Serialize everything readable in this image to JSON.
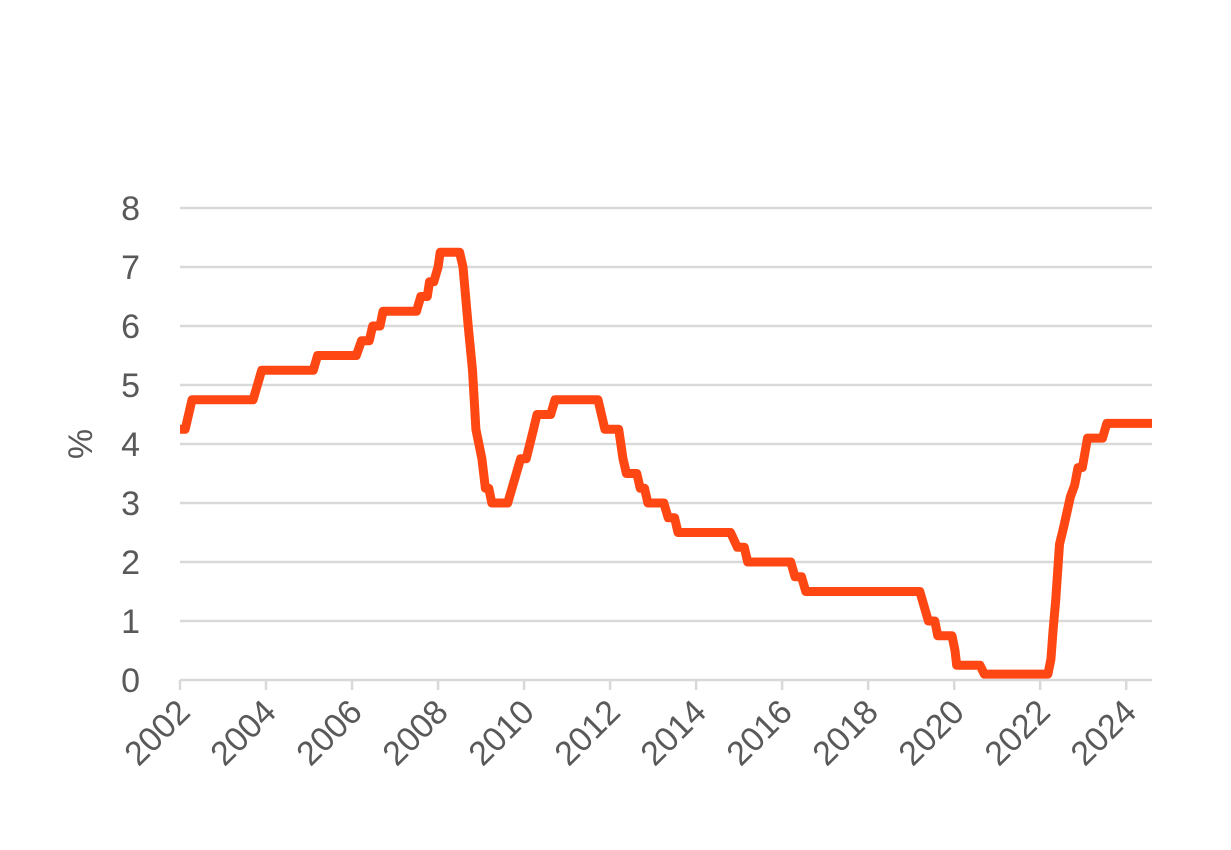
{
  "chart_data": {
    "type": "line",
    "title": "",
    "xlabel": "",
    "ylabel": "%",
    "xlim": [
      2002,
      2024.6
    ],
    "ylim": [
      0,
      8
    ],
    "grid": true,
    "x_ticks": [
      "2002",
      "2004",
      "2006",
      "2008",
      "2010",
      "2012",
      "2014",
      "2016",
      "2018",
      "2020",
      "2022",
      "2024"
    ],
    "y_ticks": [
      "0",
      "1",
      "2",
      "3",
      "4",
      "5",
      "6",
      "7",
      "8"
    ],
    "colors": {
      "line": "#ff4713",
      "grid": "#d9d9d9",
      "text": "#595959"
    },
    "series": [
      {
        "name": "",
        "points": [
          [
            2002.0,
            4.25
          ],
          [
            2002.12,
            4.25
          ],
          [
            2002.28,
            4.75
          ],
          [
            2003.7,
            4.75
          ],
          [
            2003.9,
            5.25
          ],
          [
            2005.1,
            5.25
          ],
          [
            2005.2,
            5.5
          ],
          [
            2006.1,
            5.5
          ],
          [
            2006.22,
            5.75
          ],
          [
            2006.4,
            5.75
          ],
          [
            2006.48,
            6.0
          ],
          [
            2006.65,
            6.0
          ],
          [
            2006.72,
            6.25
          ],
          [
            2007.5,
            6.25
          ],
          [
            2007.6,
            6.5
          ],
          [
            2007.75,
            6.5
          ],
          [
            2007.8,
            6.75
          ],
          [
            2007.9,
            6.75
          ],
          [
            2008.0,
            7.0
          ],
          [
            2008.05,
            7.25
          ],
          [
            2008.5,
            7.25
          ],
          [
            2008.58,
            7.0
          ],
          [
            2008.7,
            6.0
          ],
          [
            2008.8,
            5.25
          ],
          [
            2008.88,
            4.25
          ],
          [
            2009.02,
            3.75
          ],
          [
            2009.1,
            3.25
          ],
          [
            2009.18,
            3.25
          ],
          [
            2009.25,
            3.0
          ],
          [
            2009.62,
            3.0
          ],
          [
            2009.92,
            3.75
          ],
          [
            2010.05,
            3.75
          ],
          [
            2010.22,
            4.25
          ],
          [
            2010.3,
            4.5
          ],
          [
            2010.62,
            4.5
          ],
          [
            2010.72,
            4.75
          ],
          [
            2011.72,
            4.75
          ],
          [
            2011.88,
            4.25
          ],
          [
            2012.2,
            4.25
          ],
          [
            2012.3,
            3.75
          ],
          [
            2012.38,
            3.5
          ],
          [
            2012.62,
            3.5
          ],
          [
            2012.7,
            3.25
          ],
          [
            2012.8,
            3.25
          ],
          [
            2012.88,
            3.0
          ],
          [
            2013.25,
            3.0
          ],
          [
            2013.35,
            2.75
          ],
          [
            2013.5,
            2.75
          ],
          [
            2013.58,
            2.5
          ],
          [
            2014.8,
            2.5
          ],
          [
            2014.96,
            2.25
          ],
          [
            2015.12,
            2.25
          ],
          [
            2015.2,
            2.0
          ],
          [
            2016.2,
            2.0
          ],
          [
            2016.3,
            1.75
          ],
          [
            2016.45,
            1.75
          ],
          [
            2016.55,
            1.5
          ],
          [
            2019.2,
            1.5
          ],
          [
            2019.4,
            1.0
          ],
          [
            2019.55,
            1.0
          ],
          [
            2019.62,
            0.75
          ],
          [
            2019.95,
            0.75
          ],
          [
            2020.02,
            0.5
          ],
          [
            2020.06,
            0.25
          ],
          [
            2020.6,
            0.25
          ],
          [
            2020.7,
            0.1
          ],
          [
            2022.18,
            0.1
          ],
          [
            2022.25,
            0.35
          ],
          [
            2022.3,
            0.85
          ],
          [
            2022.36,
            1.35
          ],
          [
            2022.45,
            2.3
          ],
          [
            2022.55,
            2.6
          ],
          [
            2022.7,
            3.1
          ],
          [
            2022.8,
            3.3
          ],
          [
            2022.88,
            3.6
          ],
          [
            2022.98,
            3.6
          ],
          [
            2023.1,
            4.1
          ],
          [
            2023.45,
            4.1
          ],
          [
            2023.55,
            4.35
          ],
          [
            2024.6,
            4.35
          ]
        ]
      }
    ]
  }
}
